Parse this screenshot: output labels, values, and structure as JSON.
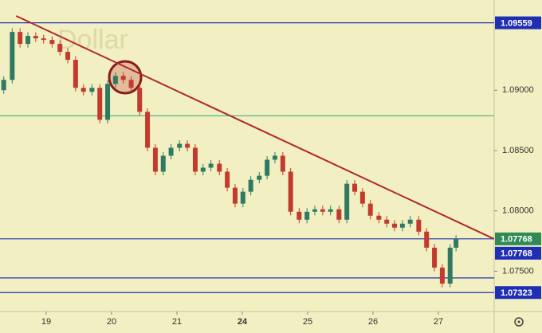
{
  "chart_data": {
    "type": "candlestick",
    "watermark": "Dollar",
    "x": [
      -0.65,
      -0.52,
      -0.4,
      -0.28,
      -0.16,
      -0.04,
      0.09,
      0.21,
      0.33,
      0.45,
      0.57,
      0.7,
      0.82,
      0.94,
      1.06,
      1.18,
      1.3,
      1.43,
      1.55,
      1.67,
      1.79,
      1.91,
      2.04,
      2.16,
      2.28,
      2.4,
      2.52,
      2.65,
      2.77,
      2.89,
      3.01,
      3.13,
      3.26,
      3.38,
      3.5,
      3.62,
      3.74,
      3.87,
      3.99,
      4.11,
      4.23,
      4.35,
      4.48,
      4.6,
      4.72,
      4.84,
      4.96,
      5.09,
      5.21,
      5.33,
      5.45,
      5.57,
      5.7,
      5.82,
      5.94,
      6.06,
      6.18,
      6.27
    ],
    "open": [
      1.09,
      1.09086,
      1.09483,
      1.09384,
      1.0945,
      1.0943,
      1.09417,
      1.09384,
      1.09318,
      1.09252,
      1.0902,
      1.08987,
      1.0902,
      1.08755,
      1.09053,
      1.09119,
      1.09086,
      1.0902,
      1.08821,
      1.08523,
      1.08325,
      1.08457,
      1.08523,
      1.08556,
      1.08523,
      1.08325,
      1.08358,
      1.08391,
      1.08325,
      1.08192,
      1.0806,
      1.08159,
      1.08258,
      1.08291,
      1.08424,
      1.08457,
      1.08325,
      1.07993,
      1.07927,
      1.07993,
      1.08013,
      1.07993,
      1.08013,
      1.07927,
      1.08225,
      1.08159,
      1.0806,
      1.0796,
      1.07927,
      1.07894,
      1.07861,
      1.07894,
      1.07927,
      1.07828,
      1.07695,
      1.0753,
      1.07397,
      1.07695
    ],
    "high": [
      1.09116,
      1.09513,
      1.09513,
      1.0948,
      1.0948,
      1.0946,
      1.09447,
      1.09414,
      1.09348,
      1.09282,
      1.0905,
      1.0905,
      1.0905,
      1.09083,
      1.09149,
      1.09149,
      1.09116,
      1.0905,
      1.08851,
      1.08553,
      1.08487,
      1.08553,
      1.08586,
      1.08586,
      1.08553,
      1.08388,
      1.08421,
      1.08421,
      1.08355,
      1.08222,
      1.08189,
      1.08288,
      1.08321,
      1.08454,
      1.08487,
      1.08487,
      1.08355,
      1.08023,
      1.08023,
      1.08043,
      1.08043,
      1.08043,
      1.08043,
      1.08255,
      1.08255,
      1.08189,
      1.0809,
      1.0799,
      1.07957,
      1.07924,
      1.07924,
      1.07957,
      1.07957,
      1.07858,
      1.07725,
      1.0756,
      1.07725,
      1.07798
    ],
    "low": [
      1.0897,
      1.09056,
      1.09354,
      1.09354,
      1.094,
      1.09387,
      1.09354,
      1.09288,
      1.09222,
      1.0899,
      1.08957,
      1.08957,
      1.08725,
      1.08725,
      1.09023,
      1.09056,
      1.0899,
      1.08791,
      1.08493,
      1.08295,
      1.08295,
      1.08427,
      1.08493,
      1.08493,
      1.08295,
      1.08295,
      1.08328,
      1.08295,
      1.08162,
      1.0803,
      1.0803,
      1.08129,
      1.08228,
      1.08261,
      1.08394,
      1.08295,
      1.07963,
      1.07897,
      1.07897,
      1.07963,
      1.07963,
      1.07963,
      1.07897,
      1.07897,
      1.08129,
      1.0803,
      1.0793,
      1.07897,
      1.07864,
      1.07831,
      1.07831,
      1.07864,
      1.07798,
      1.07665,
      1.075,
      1.07367,
      1.07367,
      1.07665
    ],
    "close": [
      1.09086,
      1.09483,
      1.09384,
      1.0945,
      1.0943,
      1.09417,
      1.09384,
      1.09318,
      1.09252,
      1.0902,
      1.08987,
      1.0902,
      1.08755,
      1.09053,
      1.09119,
      1.09086,
      1.0902,
      1.08821,
      1.08523,
      1.08325,
      1.08457,
      1.08523,
      1.08556,
      1.08523,
      1.08325,
      1.08358,
      1.08391,
      1.08325,
      1.08192,
      1.0806,
      1.08159,
      1.08258,
      1.08291,
      1.08424,
      1.08457,
      1.08325,
      1.07993,
      1.07927,
      1.07993,
      1.08013,
      1.07993,
      1.08013,
      1.07927,
      1.08225,
      1.08159,
      1.0806,
      1.0796,
      1.07927,
      1.07894,
      1.07861,
      1.07894,
      1.07927,
      1.07828,
      1.07695,
      1.0753,
      1.07397,
      1.07695,
      1.07768
    ],
    "up_color": "#2f7a62",
    "down_color": "#c23b2e",
    "xlim": [
      -0.707,
      6.854
    ],
    "xticks": [
      {
        "value": 0,
        "label": "19"
      },
      {
        "value": 1,
        "label": "20"
      },
      {
        "value": 2,
        "label": "21"
      },
      {
        "value": 3,
        "label": "24"
      },
      {
        "value": 4,
        "label": "25"
      },
      {
        "value": 5,
        "label": "26"
      },
      {
        "value": 6,
        "label": "27"
      }
    ],
    "ylim": [
      1.07166,
      1.09748
    ],
    "yticks": [
      {
        "value": 1.09,
        "label": "1.09000"
      },
      {
        "value": 1.085,
        "label": "1.08500"
      },
      {
        "value": 1.08,
        "label": "1.08000"
      },
      {
        "value": 1.075,
        "label": "1.07500"
      }
    ],
    "levels": [
      {
        "value": 1.09559,
        "label": "1.09559",
        "color": "#1f2fb5"
      },
      {
        "value": 1.08788,
        "color": "#4fb98a"
      },
      {
        "value": 1.07768,
        "label": "1.07768",
        "color": "#1f2fb5"
      },
      {
        "value": 1.07444,
        "color": "#1f2fb5"
      },
      {
        "value": 1.07323,
        "label": "1.07323",
        "color": "#1f2fb5"
      }
    ],
    "last_price": {
      "value": 1.07768,
      "label": "1.07768",
      "color": "#2e8b57"
    },
    "trendline": {
      "x": [
        -0.46,
        6.85
      ],
      "y": [
        1.09616,
        1.07768
      ],
      "color": "#b0282c"
    }
  }
}
